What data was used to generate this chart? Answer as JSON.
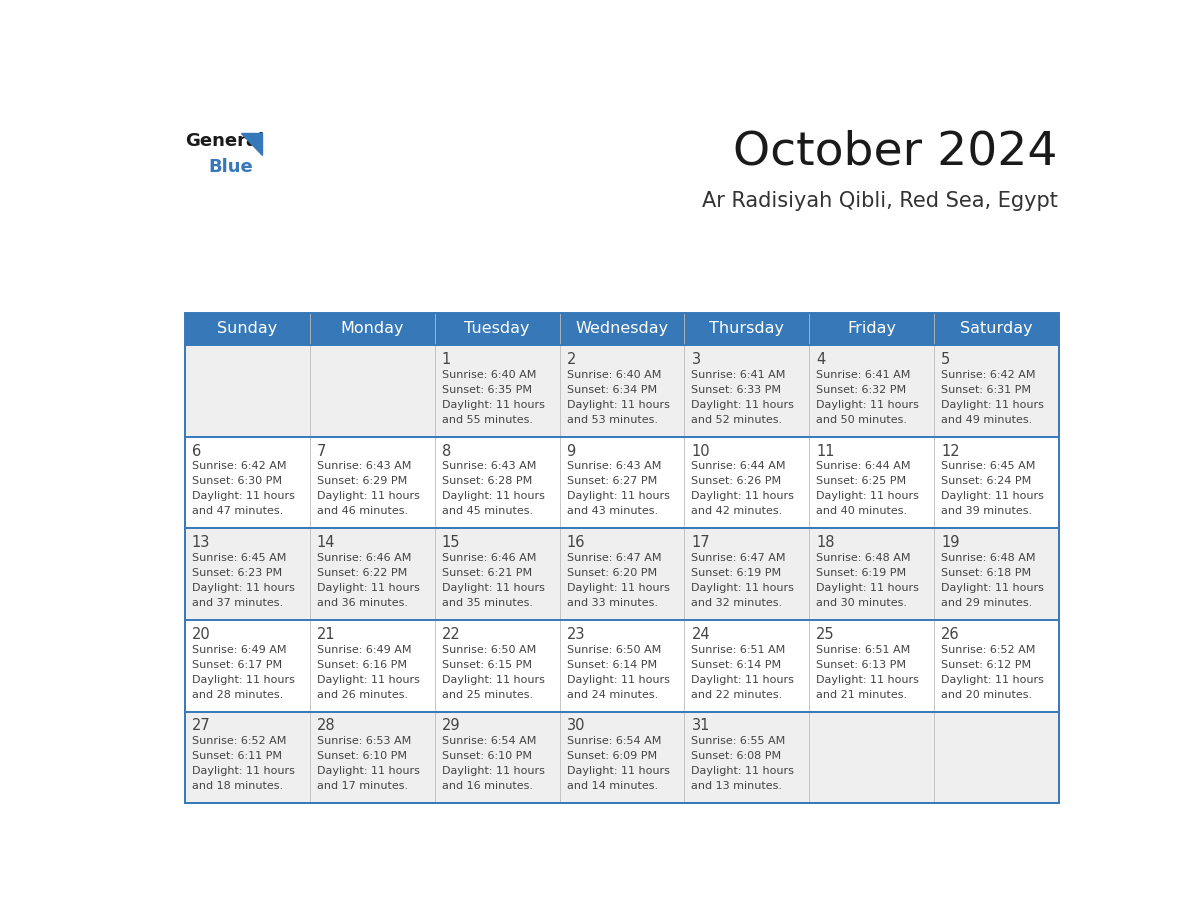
{
  "title": "October 2024",
  "subtitle": "Ar Radisiyah Qibli, Red Sea, Egypt",
  "days_of_week": [
    "Sunday",
    "Monday",
    "Tuesday",
    "Wednesday",
    "Thursday",
    "Friday",
    "Saturday"
  ],
  "header_bg": "#3778b8",
  "header_text": "#ffffff",
  "cell_bg_light": "#efefef",
  "cell_bg_white": "#ffffff",
  "divider_color": "#3778b8",
  "text_color": "#444444",
  "title_color": "#1a1a1a",
  "subtitle_color": "#333333",
  "logo_general_color": "#1a1a1a",
  "logo_blue_color": "#3778b8",
  "logo_triangle_color": "#3778b8",
  "calendar_data": [
    [
      null,
      null,
      {
        "day": 1,
        "sunrise": "6:40 AM",
        "sunset": "6:35 PM",
        "daylight": "11 hours and 55 minutes"
      },
      {
        "day": 2,
        "sunrise": "6:40 AM",
        "sunset": "6:34 PM",
        "daylight": "11 hours and 53 minutes"
      },
      {
        "day": 3,
        "sunrise": "6:41 AM",
        "sunset": "6:33 PM",
        "daylight": "11 hours and 52 minutes"
      },
      {
        "day": 4,
        "sunrise": "6:41 AM",
        "sunset": "6:32 PM",
        "daylight": "11 hours and 50 minutes"
      },
      {
        "day": 5,
        "sunrise": "6:42 AM",
        "sunset": "6:31 PM",
        "daylight": "11 hours and 49 minutes"
      }
    ],
    [
      {
        "day": 6,
        "sunrise": "6:42 AM",
        "sunset": "6:30 PM",
        "daylight": "11 hours and 47 minutes"
      },
      {
        "day": 7,
        "sunrise": "6:43 AM",
        "sunset": "6:29 PM",
        "daylight": "11 hours and 46 minutes"
      },
      {
        "day": 8,
        "sunrise": "6:43 AM",
        "sunset": "6:28 PM",
        "daylight": "11 hours and 45 minutes"
      },
      {
        "day": 9,
        "sunrise": "6:43 AM",
        "sunset": "6:27 PM",
        "daylight": "11 hours and 43 minutes"
      },
      {
        "day": 10,
        "sunrise": "6:44 AM",
        "sunset": "6:26 PM",
        "daylight": "11 hours and 42 minutes"
      },
      {
        "day": 11,
        "sunrise": "6:44 AM",
        "sunset": "6:25 PM",
        "daylight": "11 hours and 40 minutes"
      },
      {
        "day": 12,
        "sunrise": "6:45 AM",
        "sunset": "6:24 PM",
        "daylight": "11 hours and 39 minutes"
      }
    ],
    [
      {
        "day": 13,
        "sunrise": "6:45 AM",
        "sunset": "6:23 PM",
        "daylight": "11 hours and 37 minutes"
      },
      {
        "day": 14,
        "sunrise": "6:46 AM",
        "sunset": "6:22 PM",
        "daylight": "11 hours and 36 minutes"
      },
      {
        "day": 15,
        "sunrise": "6:46 AM",
        "sunset": "6:21 PM",
        "daylight": "11 hours and 35 minutes"
      },
      {
        "day": 16,
        "sunrise": "6:47 AM",
        "sunset": "6:20 PM",
        "daylight": "11 hours and 33 minutes"
      },
      {
        "day": 17,
        "sunrise": "6:47 AM",
        "sunset": "6:19 PM",
        "daylight": "11 hours and 32 minutes"
      },
      {
        "day": 18,
        "sunrise": "6:48 AM",
        "sunset": "6:19 PM",
        "daylight": "11 hours and 30 minutes"
      },
      {
        "day": 19,
        "sunrise": "6:48 AM",
        "sunset": "6:18 PM",
        "daylight": "11 hours and 29 minutes"
      }
    ],
    [
      {
        "day": 20,
        "sunrise": "6:49 AM",
        "sunset": "6:17 PM",
        "daylight": "11 hours and 28 minutes"
      },
      {
        "day": 21,
        "sunrise": "6:49 AM",
        "sunset": "6:16 PM",
        "daylight": "11 hours and 26 minutes"
      },
      {
        "day": 22,
        "sunrise": "6:50 AM",
        "sunset": "6:15 PM",
        "daylight": "11 hours and 25 minutes"
      },
      {
        "day": 23,
        "sunrise": "6:50 AM",
        "sunset": "6:14 PM",
        "daylight": "11 hours and 24 minutes"
      },
      {
        "day": 24,
        "sunrise": "6:51 AM",
        "sunset": "6:14 PM",
        "daylight": "11 hours and 22 minutes"
      },
      {
        "day": 25,
        "sunrise": "6:51 AM",
        "sunset": "6:13 PM",
        "daylight": "11 hours and 21 minutes"
      },
      {
        "day": 26,
        "sunrise": "6:52 AM",
        "sunset": "6:12 PM",
        "daylight": "11 hours and 20 minutes"
      }
    ],
    [
      {
        "day": 27,
        "sunrise": "6:52 AM",
        "sunset": "6:11 PM",
        "daylight": "11 hours and 18 minutes"
      },
      {
        "day": 28,
        "sunrise": "6:53 AM",
        "sunset": "6:10 PM",
        "daylight": "11 hours and 17 minutes"
      },
      {
        "day": 29,
        "sunrise": "6:54 AM",
        "sunset": "6:10 PM",
        "daylight": "11 hours and 16 minutes"
      },
      {
        "day": 30,
        "sunrise": "6:54 AM",
        "sunset": "6:09 PM",
        "daylight": "11 hours and 14 minutes"
      },
      {
        "day": 31,
        "sunrise": "6:55 AM",
        "sunset": "6:08 PM",
        "daylight": "11 hours and 13 minutes"
      },
      null,
      null
    ]
  ]
}
